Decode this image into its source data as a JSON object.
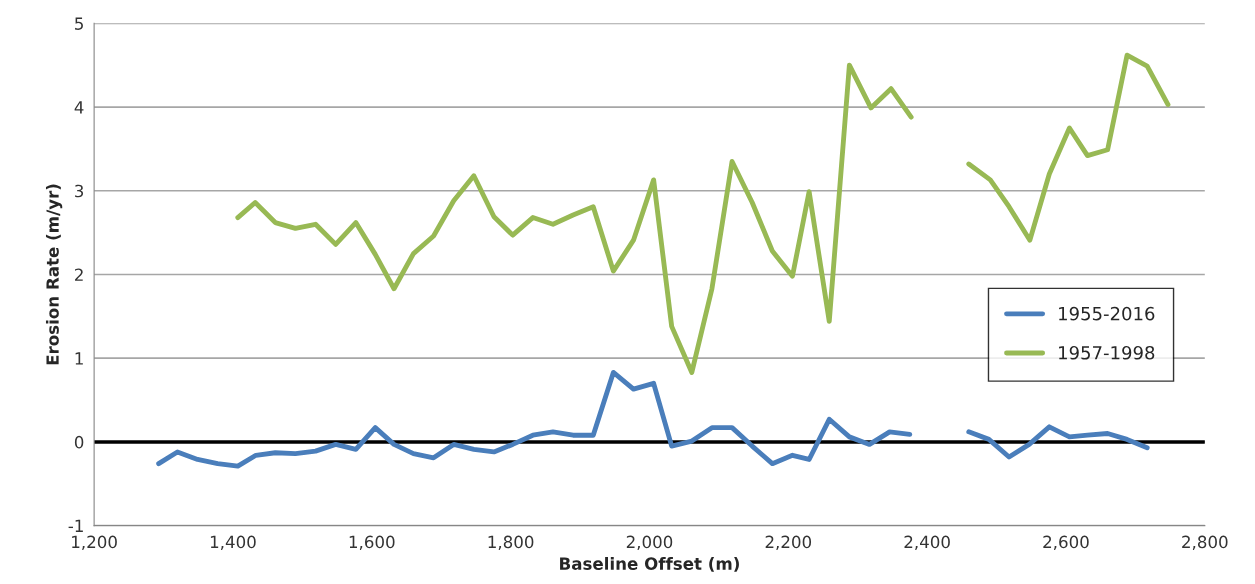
{
  "chart_data": {
    "type": "line",
    "xlabel": "Baseline Offset (m)",
    "ylabel": "Erosion Rate (m/yr)",
    "xlim": [
      1200,
      2800
    ],
    "xticks": [
      {
        "value": 1200,
        "label": "1,200"
      },
      {
        "value": 1400,
        "label": "1,400"
      },
      {
        "value": 1600,
        "label": "1,600"
      },
      {
        "value": 1800,
        "label": "1,800"
      },
      {
        "value": 2000,
        "label": "2,000"
      },
      {
        "value": 2200,
        "label": "2,200"
      },
      {
        "value": 2400,
        "label": "2,400"
      },
      {
        "value": 2600,
        "label": "2,600"
      },
      {
        "value": 2800,
        "label": "2,800"
      }
    ],
    "ylim": [
      -1,
      5
    ],
    "yticks": [
      -1,
      0,
      1,
      2,
      3,
      4,
      5
    ],
    "grid": "y",
    "legend": "right",
    "marker": "none",
    "line_style": "solid",
    "ref_lines": [
      {
        "axis": "y",
        "value": 0,
        "color": "#000000"
      }
    ],
    "series": [
      {
        "name": "1955-2016",
        "color": "#4a7ebb",
        "x": [
          1293,
          1320,
          1349,
          1378,
          1407,
          1433,
          1461,
          1490,
          1519,
          1548,
          1577,
          1605,
          1632,
          1660,
          1689,
          1718,
          1747,
          1776,
          1803,
          1832,
          1861,
          1890,
          1919,
          1948,
          1977,
          2006,
          2032,
          2061,
          2090,
          2119,
          2148,
          2177,
          2206,
          2230,
          2259,
          2288,
          2317,
          2346,
          2375,
          2418,
          2460,
          2489,
          2518,
          2547,
          2576,
          2605,
          2631,
          2660,
          2688,
          2717
        ],
        "values": [
          -0.26,
          -0.12,
          -0.21,
          -0.26,
          -0.29,
          -0.16,
          -0.13,
          -0.14,
          -0.11,
          -0.03,
          -0.09,
          0.17,
          -0.03,
          -0.14,
          -0.19,
          -0.03,
          -0.09,
          -0.12,
          -0.03,
          0.08,
          0.12,
          0.08,
          0.08,
          0.83,
          0.63,
          0.7,
          -0.05,
          0.01,
          0.17,
          0.17,
          -0.05,
          -0.26,
          -0.16,
          -0.21,
          0.27,
          0.06,
          -0.03,
          0.12,
          0.09,
          null,
          0.12,
          0.03,
          -0.18,
          -0.03,
          0.18,
          0.06,
          0.08,
          0.1,
          0.03,
          -0.07
        ]
      },
      {
        "name": "1957-1998",
        "color": "#98b954",
        "x": [
          1407,
          1432,
          1461,
          1490,
          1519,
          1548,
          1577,
          1605,
          1632,
          1660,
          1689,
          1718,
          1747,
          1776,
          1803,
          1832,
          1861,
          1890,
          1919,
          1948,
          1977,
          2006,
          2032,
          2061,
          2090,
          2119,
          2148,
          2177,
          2206,
          2230,
          2259,
          2288,
          2319,
          2348,
          2377,
          2418,
          2460,
          2491,
          2518,
          2548,
          2576,
          2605,
          2631,
          2660,
          2688,
          2717,
          2747
        ],
        "values": [
          2.68,
          2.86,
          2.62,
          2.55,
          2.6,
          2.36,
          2.62,
          2.24,
          1.83,
          2.25,
          2.46,
          2.88,
          3.18,
          2.69,
          2.47,
          2.68,
          2.6,
          2.71,
          2.81,
          2.04,
          2.41,
          3.13,
          1.38,
          0.83,
          1.83,
          3.35,
          2.86,
          2.28,
          1.98,
          2.99,
          1.44,
          4.5,
          3.99,
          4.22,
          3.88,
          null,
          3.32,
          3.13,
          2.81,
          2.41,
          3.2,
          3.75,
          3.42,
          3.49,
          4.62,
          4.49,
          4.03
        ]
      }
    ]
  }
}
